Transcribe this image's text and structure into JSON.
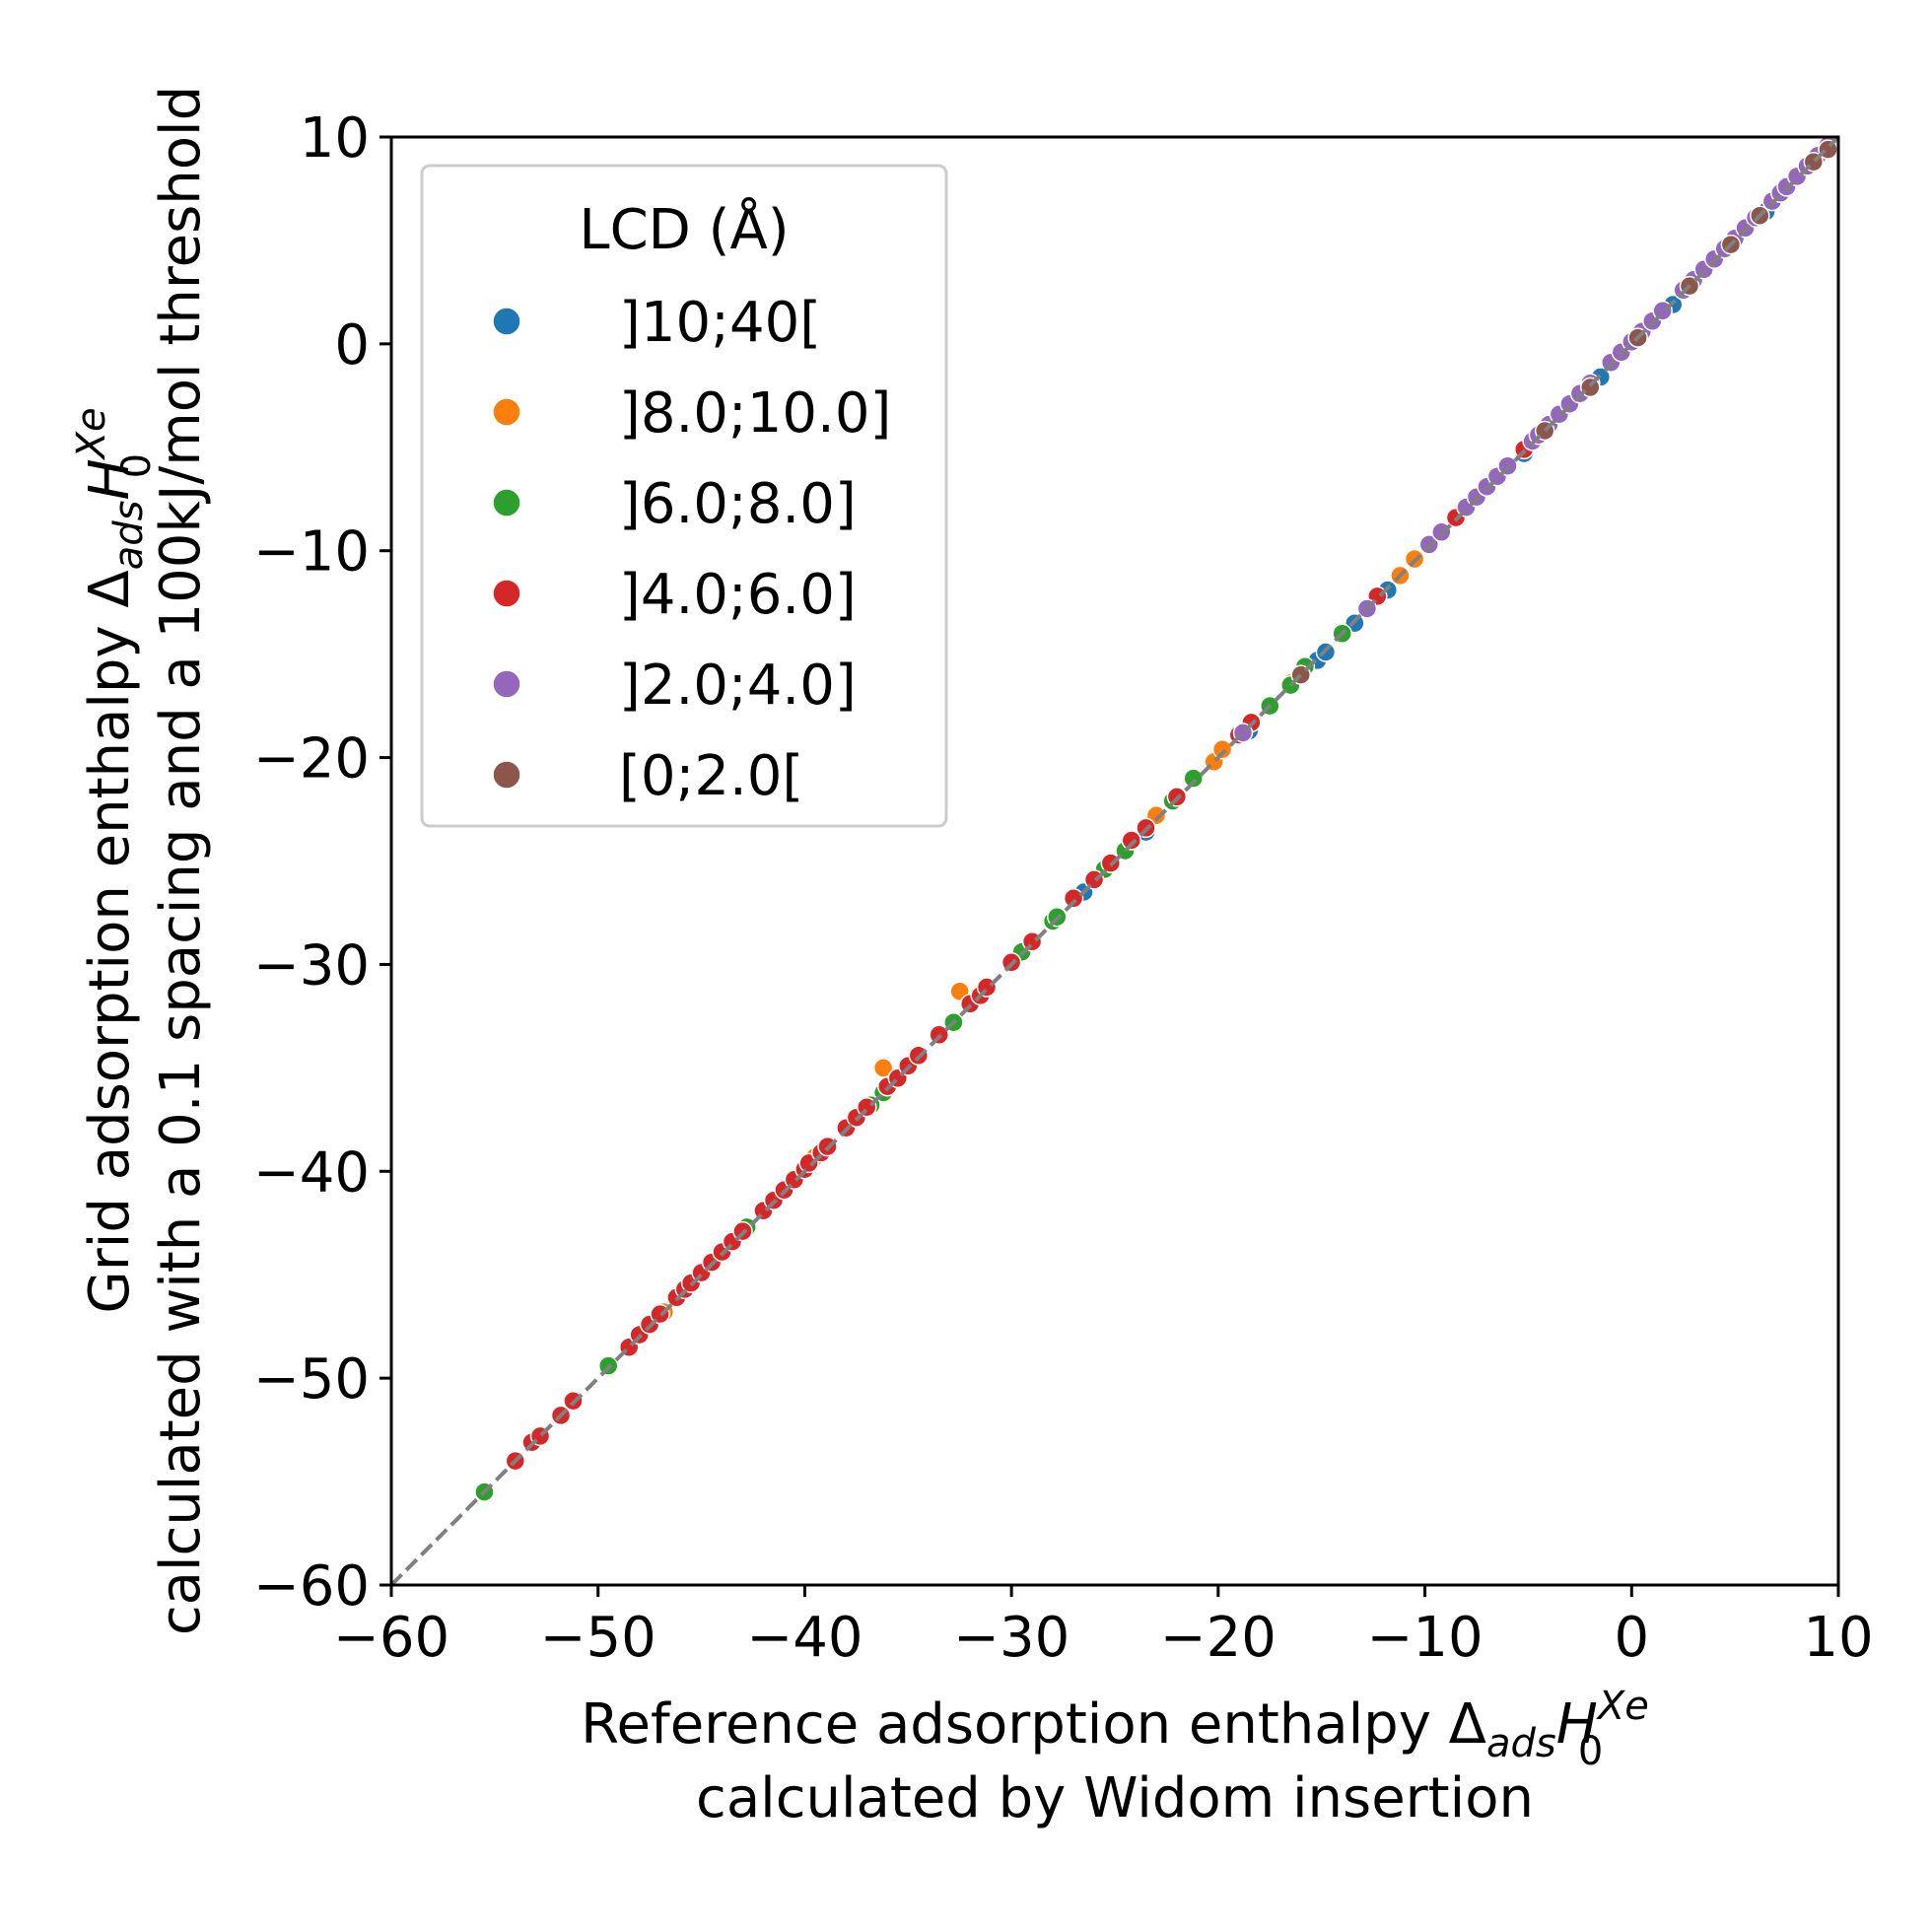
{
  "chart_data": {
    "type": "scatter",
    "title": "",
    "xlabel": {
      "line1_prefix": "Reference adsorption enthalpy Δ",
      "sub": "ads",
      "H": "H",
      "H_sub": "0",
      "H_sup": "Xe",
      "line2": "calculated by Widom insertion"
    },
    "ylabel": {
      "line1_prefix": "Grid adsorption enthalpy Δ",
      "sub": "ads",
      "H": "H",
      "H_sub": "0",
      "H_sup": "Xe",
      "line2": "calculated with a 0.1 spacing and a 100kJ/mol threshold"
    },
    "xlim": [
      -60,
      10
    ],
    "ylim": [
      -60,
      10
    ],
    "xticks": [
      -60,
      -50,
      -40,
      -30,
      -20,
      -10,
      0,
      10
    ],
    "yticks": [
      -60,
      -50,
      -40,
      -30,
      -20,
      -10,
      0,
      10
    ],
    "xtick_labels": [
      "−60",
      "−50",
      "−40",
      "−30",
      "−20",
      "−10",
      "0",
      "10"
    ],
    "ytick_labels": [
      "−60",
      "−50",
      "−40",
      "−30",
      "−20",
      "−10",
      "0",
      "10"
    ],
    "reference_line": {
      "style": "dashed",
      "color": "#808080",
      "from": [
        -60,
        -60
      ],
      "to": [
        10,
        10
      ]
    },
    "legend": {
      "title": "LCD (Å)",
      "position": "top-left",
      "entries": [
        {
          "label": "]10;40[",
          "color": "#1f77b4"
        },
        {
          "label": "]8.0;10.0]",
          "color": "#ff7f0e"
        },
        {
          "label": "]6.0;8.0]",
          "color": "#2ca02c"
        },
        {
          "label": "]4.0;6.0]",
          "color": "#d62728"
        },
        {
          "label": "]2.0;4.0]",
          "color": "#9467bd"
        },
        {
          "label": "[0;2.0[",
          "color": "#8c564b"
        }
      ]
    },
    "series": [
      {
        "name": "]10;40[",
        "color": "#1f77b4",
        "points": [
          [
            -26.5,
            -26.5
          ],
          [
            -23.5,
            -23.6
          ],
          [
            -18.5,
            -18.7
          ],
          [
            -15.2,
            -15.3
          ],
          [
            -14.8,
            -14.9
          ],
          [
            -13.4,
            -13.5
          ],
          [
            -11.8,
            -11.9
          ],
          [
            -5.2,
            -5.3
          ],
          [
            -1.5,
            -1.6
          ],
          [
            2.0,
            1.9
          ],
          [
            6.5,
            6.4
          ]
        ]
      },
      {
        "name": "]8.0;10.0]",
        "color": "#ff7f0e",
        "points": [
          [
            -46.8,
            -46.8
          ],
          [
            -39.5,
            -39.3
          ],
          [
            -36.2,
            -35.0
          ],
          [
            -32.5,
            -31.3
          ],
          [
            -23.0,
            -22.8
          ],
          [
            -20.2,
            -20.2
          ],
          [
            -19.8,
            -19.6
          ],
          [
            -11.2,
            -11.2
          ],
          [
            -10.5,
            -10.4
          ],
          [
            -16.5,
            -16.4
          ],
          [
            -29.0,
            -28.9
          ]
        ]
      },
      {
        "name": "]6.0;8.0]",
        "color": "#2ca02c",
        "points": [
          [
            -55.5,
            -55.5
          ],
          [
            -49.5,
            -49.4
          ],
          [
            -42.8,
            -42.7
          ],
          [
            -36.2,
            -36.2
          ],
          [
            -36.8,
            -36.8
          ],
          [
            -32.8,
            -32.8
          ],
          [
            -29.5,
            -29.4
          ],
          [
            -28.0,
            -27.9
          ],
          [
            -27.8,
            -27.7
          ],
          [
            -24.5,
            -24.5
          ],
          [
            -22.2,
            -22.1
          ],
          [
            -21.2,
            -21.0
          ],
          [
            -17.5,
            -17.5
          ],
          [
            -16.5,
            -16.5
          ],
          [
            -16.0,
            -15.9
          ],
          [
            -15.8,
            -15.6
          ],
          [
            -14.0,
            -14.0
          ],
          [
            -25.5,
            -25.4
          ]
        ]
      },
      {
        "name": "]4.0;6.0]",
        "color": "#d62728",
        "points": [
          [
            -54.0,
            -54.0
          ],
          [
            -53.2,
            -53.1
          ],
          [
            -52.8,
            -52.8
          ],
          [
            -51.8,
            -51.8
          ],
          [
            -51.2,
            -51.1
          ],
          [
            -48.5,
            -48.5
          ],
          [
            -48.0,
            -47.9
          ],
          [
            -47.5,
            -47.4
          ],
          [
            -47.0,
            -46.9
          ],
          [
            -46.2,
            -46.1
          ],
          [
            -45.8,
            -45.7
          ],
          [
            -45.5,
            -45.4
          ],
          [
            -45.0,
            -44.9
          ],
          [
            -44.5,
            -44.4
          ],
          [
            -44.0,
            -43.9
          ],
          [
            -43.5,
            -43.4
          ],
          [
            -43.0,
            -42.9
          ],
          [
            -42.0,
            -41.9
          ],
          [
            -41.5,
            -41.4
          ],
          [
            -41.0,
            -40.9
          ],
          [
            -40.5,
            -40.4
          ],
          [
            -40.0,
            -39.9
          ],
          [
            -39.8,
            -39.6
          ],
          [
            -39.2,
            -39.1
          ],
          [
            -38.9,
            -38.8
          ],
          [
            -38.0,
            -37.9
          ],
          [
            -37.5,
            -37.4
          ],
          [
            -37.0,
            -36.9
          ],
          [
            -36.0,
            -35.9
          ],
          [
            -35.5,
            -35.5
          ],
          [
            -35.0,
            -34.9
          ],
          [
            -34.5,
            -34.4
          ],
          [
            -33.5,
            -33.4
          ],
          [
            -32.0,
            -31.9
          ],
          [
            -31.5,
            -31.5
          ],
          [
            -31.2,
            -31.1
          ],
          [
            -30.0,
            -29.9
          ],
          [
            -29.0,
            -28.9
          ],
          [
            -27.0,
            -26.8
          ],
          [
            -26.0,
            -25.9
          ],
          [
            -25.2,
            -25.1
          ],
          [
            -24.2,
            -24.0
          ],
          [
            -23.5,
            -23.4
          ],
          [
            -22.0,
            -21.9
          ],
          [
            -19.0,
            -18.9
          ],
          [
            -18.4,
            -18.3
          ],
          [
            -12.3,
            -12.2
          ],
          [
            -8.5,
            -8.4
          ],
          [
            -5.2,
            -5.1
          ]
        ]
      },
      {
        "name": "]2.0;4.0]",
        "color": "#9467bd",
        "points": [
          [
            -18.8,
            -18.8
          ],
          [
            -12.8,
            -12.8
          ],
          [
            -9.8,
            -9.7
          ],
          [
            -9.2,
            -9.1
          ],
          [
            -8.0,
            -7.9
          ],
          [
            -7.5,
            -7.4
          ],
          [
            -7.0,
            -6.9
          ],
          [
            -6.5,
            -6.4
          ],
          [
            -6.0,
            -5.9
          ],
          [
            -4.8,
            -4.7
          ],
          [
            -4.5,
            -4.4
          ],
          [
            -4.0,
            -3.9
          ],
          [
            -3.5,
            -3.4
          ],
          [
            -3.0,
            -2.9
          ],
          [
            -2.5,
            -2.4
          ],
          [
            -2.0,
            -1.9
          ],
          [
            -1.0,
            -0.9
          ],
          [
            -0.5,
            -0.4
          ],
          [
            0.0,
            0.1
          ],
          [
            0.5,
            0.6
          ],
          [
            1.0,
            1.1
          ],
          [
            1.5,
            1.6
          ],
          [
            2.5,
            2.6
          ],
          [
            3.0,
            3.1
          ],
          [
            3.5,
            3.6
          ],
          [
            4.0,
            4.1
          ],
          [
            4.5,
            4.6
          ],
          [
            5.0,
            5.1
          ],
          [
            5.5,
            5.6
          ],
          [
            6.0,
            6.1
          ],
          [
            6.8,
            6.9
          ],
          [
            7.2,
            7.3
          ],
          [
            7.5,
            7.6
          ],
          [
            8.0,
            8.1
          ],
          [
            8.5,
            8.6
          ],
          [
            9.0,
            9.1
          ],
          [
            9.5,
            9.6
          ]
        ]
      },
      {
        "name": "[0;2.0[",
        "color": "#8c564b",
        "points": [
          [
            -16.0,
            -16.0
          ],
          [
            -4.2,
            -4.2
          ],
          [
            -2.0,
            -2.1
          ],
          [
            0.3,
            0.3
          ],
          [
            2.8,
            2.8
          ],
          [
            4.8,
            4.8
          ],
          [
            6.2,
            6.2
          ],
          [
            8.8,
            8.8
          ],
          [
            9.5,
            9.4
          ]
        ]
      }
    ]
  }
}
